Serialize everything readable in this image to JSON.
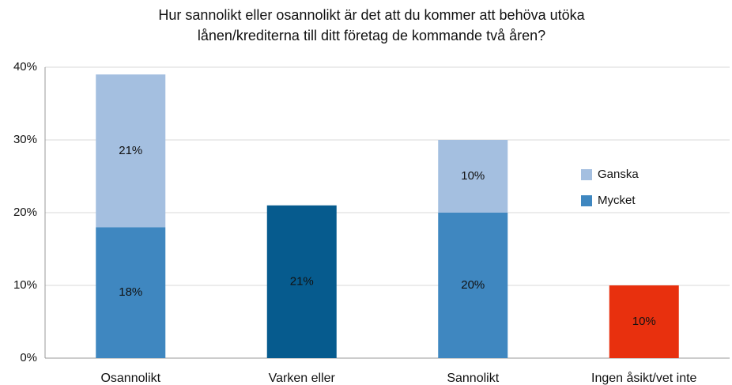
{
  "chart_data": {
    "type": "stacked_bar",
    "title": [
      "Hur sannolikt eller osannolikt är det att du kommer att behöva utöka",
      "lånen/krediterna till ditt företag de kommande två åren?"
    ],
    "categories": [
      "Osannolikt",
      "Varken eller",
      "Sannolikt",
      "Ingen åsikt/vet inte"
    ],
    "series": [
      {
        "name": "Mycket",
        "color": "#3f87c0",
        "point_colors": [
          "#3f87c0",
          "#065b8e",
          "#3f87c0",
          "#e8300e"
        ],
        "values": [
          18,
          21,
          20,
          10
        ],
        "value_labels": [
          "18%",
          "21%",
          "20%",
          "10%"
        ]
      },
      {
        "name": "Ganska",
        "color": "#a4bfe0",
        "point_colors": [
          "#a4bfe0",
          "#a4bfe0",
          "#a4bfe0",
          "#a4bfe0"
        ],
        "values": [
          21,
          null,
          10,
          null
        ],
        "value_labels": [
          "21%",
          null,
          "10%",
          null
        ]
      }
    ],
    "ylim": [
      0,
      40
    ],
    "yticks": [
      {
        "value": 0,
        "label": "0%"
      },
      {
        "value": 10,
        "label": "10%"
      },
      {
        "value": 20,
        "label": "20%"
      },
      {
        "value": 30,
        "label": "30%"
      },
      {
        "value": 40,
        "label": "40%"
      }
    ],
    "grid": true,
    "legend": "right"
  }
}
